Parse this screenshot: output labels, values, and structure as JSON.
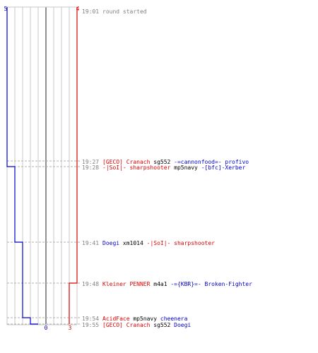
{
  "scores": {
    "blue_start": "5",
    "red_start": "4",
    "blue_end": "0",
    "red_end": "3"
  },
  "colors": {
    "blue": "#0000cc",
    "red": "#dd0000",
    "grid": "#c8c8c8",
    "dashed": "#b0b0b0",
    "center": "#606060",
    "time": "#808080",
    "black": "#000000"
  },
  "events": [
    {
      "time": "19:01",
      "parts": [
        {
          "text": "round started",
          "c": "time"
        }
      ]
    },
    {
      "time": "19:27",
      "parts": [
        {
          "text": "[GECO] Cranach",
          "c": "red"
        },
        {
          "text": " sg552 ",
          "c": "black"
        },
        {
          "text": "-=cannonfood=- profivo",
          "c": "blue"
        }
      ]
    },
    {
      "time": "19:28",
      "parts": [
        {
          "text": "-|SoI|- sharpshooter",
          "c": "red"
        },
        {
          "text": " mp5navy ",
          "c": "black"
        },
        {
          "text": "-[bfc]-Xerber",
          "c": "blue"
        }
      ]
    },
    {
      "time": "19:41",
      "parts": [
        {
          "text": "Doegi",
          "c": "blue"
        },
        {
          "text": " xm1014 ",
          "c": "black"
        },
        {
          "text": "-|SoI|- sharpshooter",
          "c": "red"
        }
      ]
    },
    {
      "time": "19:48",
      "parts": [
        {
          "text": "Kleiner PENNER",
          "c": "red"
        },
        {
          "text": " m4a1 ",
          "c": "black"
        },
        {
          "text": "-={KBR}=- Broken-Fighter",
          "c": "blue"
        }
      ]
    },
    {
      "time": "19:54",
      "parts": [
        {
          "text": "AcidFace",
          "c": "red"
        },
        {
          "text": " mp5navy ",
          "c": "black"
        },
        {
          "text": "cheenera",
          "c": "blue"
        }
      ]
    },
    {
      "time": "19:55",
      "parts": [
        {
          "text": "[GECO] Cranach",
          "c": "red"
        },
        {
          "text": " sg552 ",
          "c": "black"
        },
        {
          "text": "Doegi",
          "c": "blue"
        }
      ]
    }
  ],
  "blue_alive": [
    5,
    5,
    4,
    3,
    3,
    2,
    1,
    0
  ],
  "red_alive": [
    4,
    4,
    4,
    4,
    3,
    3,
    3,
    3
  ]
}
